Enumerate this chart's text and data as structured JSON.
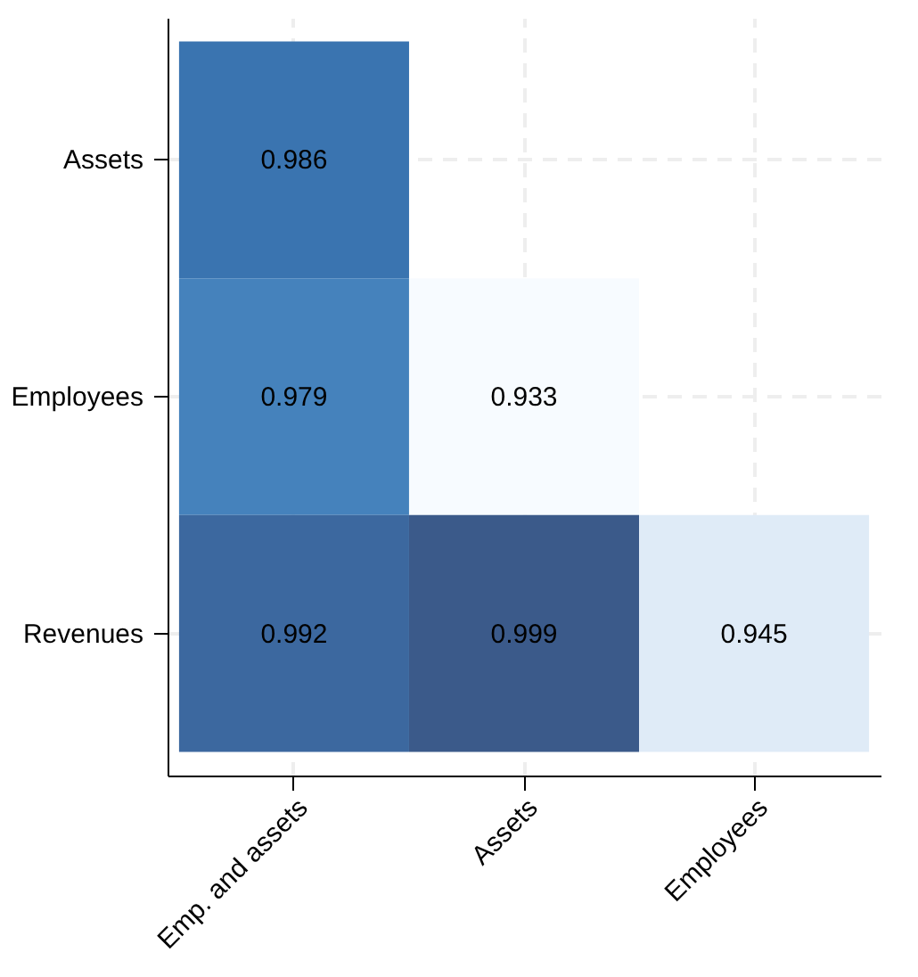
{
  "chart_data": {
    "type": "heatmap",
    "categories": [
      "Emp. and assets",
      "Assets",
      "Employees"
    ],
    "y_categories": [
      "Assets",
      "Employees",
      "Revenues"
    ],
    "cells": [
      [
        0.986,
        null,
        null
      ],
      [
        0.979,
        0.933,
        null
      ],
      [
        0.992,
        0.999,
        0.945
      ]
    ],
    "data_labels": true,
    "grid": true
  }
}
